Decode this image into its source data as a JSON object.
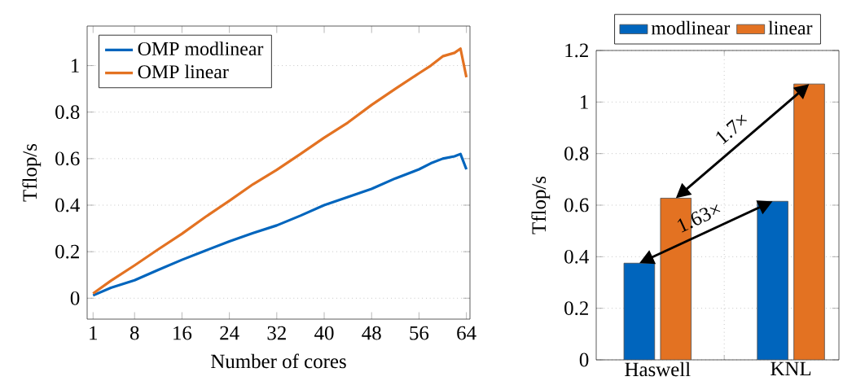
{
  "chart_data": [
    {
      "type": "line",
      "xlabel": "Number of cores",
      "ylabel": "Tflop/s",
      "xlim": [
        0,
        64.6
      ],
      "ylim": [
        -0.09,
        1.17
      ],
      "xticks": [
        1,
        8,
        16,
        24,
        32,
        40,
        48,
        56,
        64
      ],
      "yticks": [
        0,
        0.2,
        0.4,
        0.6,
        0.8,
        1
      ],
      "grid": "y",
      "legend": "top left",
      "marker": "none",
      "line_style": "solid",
      "x": [
        1,
        4,
        8,
        12,
        16,
        20,
        24,
        28,
        32,
        36,
        40,
        44,
        48,
        52,
        56,
        58,
        60,
        62,
        63,
        64
      ],
      "series": [
        {
          "name": "OMP modlinear",
          "color": "#0065bd",
          "values": [
            0.012,
            0.045,
            0.077,
            0.122,
            0.165,
            0.205,
            0.244,
            0.28,
            0.313,
            0.355,
            0.4,
            0.435,
            0.47,
            0.515,
            0.554,
            0.58,
            0.6,
            0.61,
            0.62,
            0.554
          ]
        },
        {
          "name": "OMP linear",
          "color": "#e37222",
          "values": [
            0.02,
            0.075,
            0.141,
            0.21,
            0.277,
            0.35,
            0.419,
            0.49,
            0.552,
            0.62,
            0.69,
            0.755,
            0.831,
            0.9,
            0.967,
            1.0,
            1.04,
            1.055,
            1.073,
            0.95
          ]
        }
      ]
    },
    {
      "type": "bar",
      "ylabel": "Tflop/s",
      "categories": [
        "Haswell",
        "KNL"
      ],
      "ylim": [
        0,
        1.2
      ],
      "yticks": [
        0,
        0.2,
        0.4,
        0.6,
        0.8,
        1,
        1.2
      ],
      "grid": true,
      "legend": "top",
      "series": [
        {
          "name": "modlinear",
          "color": "#0065bd",
          "values": [
            0.375,
            0.615
          ]
        },
        {
          "name": "linear",
          "color": "#e37222",
          "values": [
            0.627,
            1.07
          ]
        }
      ],
      "annotations": [
        "1.63×",
        "1.7×"
      ]
    }
  ]
}
